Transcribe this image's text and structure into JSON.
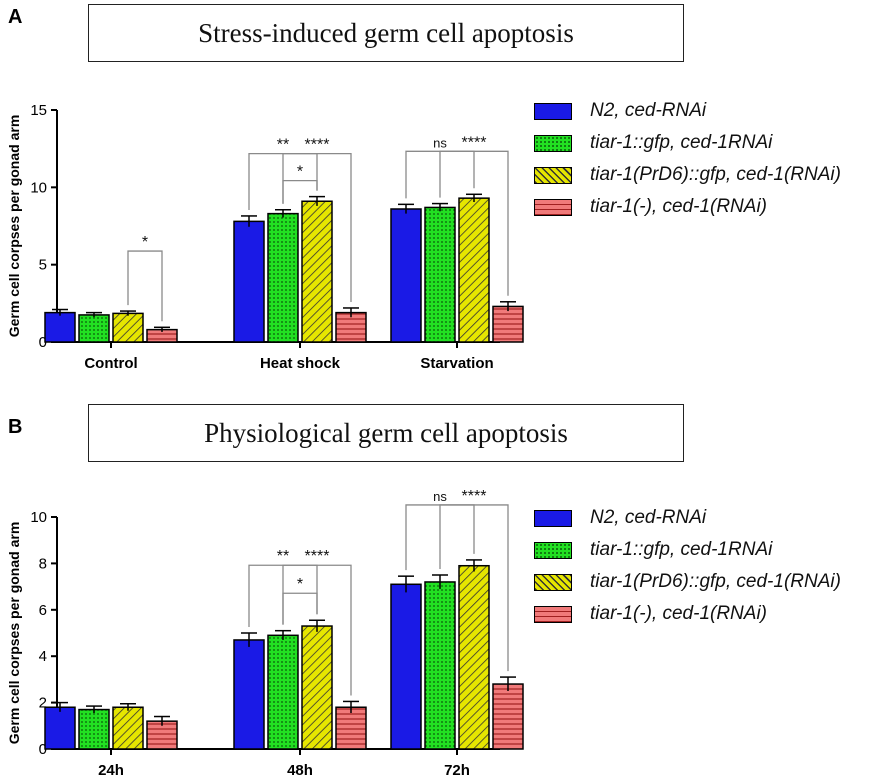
{
  "panels": [
    {
      "letter": "A",
      "title": "Stress-induced germ cell apoptosis",
      "legend": [
        "N2, ced-RNAi",
        "tiar-1::gfp, ced-1RNAi",
        "tiar-1(PrD6)::gfp, ced-1(RNAi)",
        "tiar-1(-), ced-1(RNAi)"
      ]
    },
    {
      "letter": "B",
      "title": "Physiological germ cell apoptosis",
      "legend": [
        "N2, ced-RNAi",
        "tiar-1::gfp, ced-1RNAi",
        "tiar-1(PrD6)::gfp, ced-1(RNAi)",
        "tiar-1(-), ced-1(RNAi)"
      ]
    }
  ],
  "colors": {
    "n2": "#1a1ae6",
    "gfp": "#22e022",
    "prd6": "#e6e600",
    "minus": "#f07a7a"
  },
  "chart_data": [
    {
      "type": "bar",
      "title": "Stress-induced germ cell apoptosis",
      "xlabel": "",
      "ylabel": "Germ cell corpses per gonad arm",
      "ylim": [
        0,
        15
      ],
      "yticks": [
        "0",
        "5",
        "10",
        "15"
      ],
      "categories": [
        "Control",
        "Heat shock",
        "Starvation"
      ],
      "series": [
        {
          "name": "N2, ced-RNAi",
          "values": [
            1.9,
            7.8,
            8.6
          ],
          "errors": [
            0.2,
            0.35,
            0.3
          ]
        },
        {
          "name": "tiar-1::gfp, ced-1RNAi",
          "values": [
            1.75,
            8.3,
            8.7
          ],
          "errors": [
            0.15,
            0.25,
            0.25
          ]
        },
        {
          "name": "tiar-1(PrD6)::gfp, ced-1(RNAi)",
          "values": [
            1.85,
            9.1,
            9.3
          ],
          "errors": [
            0.15,
            0.3,
            0.25
          ]
        },
        {
          "name": "tiar-1(-), ced-1(RNAi)",
          "values": [
            0.8,
            1.9,
            2.3
          ],
          "errors": [
            0.15,
            0.3,
            0.3
          ]
        }
      ],
      "significance": [
        {
          "category": 0,
          "from": 2,
          "to": 3,
          "label": "*"
        },
        {
          "category": 1,
          "from": 0,
          "to": 2,
          "label": "**"
        },
        {
          "category": 1,
          "from": 1,
          "to": 2,
          "label": "*"
        },
        {
          "category": 1,
          "from": 1,
          "to": 3,
          "label": "****"
        },
        {
          "category": 2,
          "from": 0,
          "to": 2,
          "label": "ns"
        },
        {
          "category": 2,
          "from": 1,
          "to": 3,
          "label": "****"
        }
      ]
    },
    {
      "type": "bar",
      "title": "Physiological germ cell apoptosis",
      "xlabel": "",
      "ylabel": "Germ cell corpses per gonad arm",
      "ylim": [
        0,
        10
      ],
      "yticks": [
        "0",
        "2",
        "4",
        "6",
        "8",
        "10"
      ],
      "categories": [
        "24h",
        "48h",
        "72h"
      ],
      "series": [
        {
          "name": "N2, ced-RNAi",
          "values": [
            1.8,
            4.7,
            7.1
          ],
          "errors": [
            0.2,
            0.3,
            0.35
          ]
        },
        {
          "name": "tiar-1::gfp, ced-1RNAi",
          "values": [
            1.7,
            4.9,
            7.2
          ],
          "errors": [
            0.15,
            0.2,
            0.3
          ]
        },
        {
          "name": "tiar-1(PrD6)::gfp, ced-1(RNAi)",
          "values": [
            1.8,
            5.3,
            7.9
          ],
          "errors": [
            0.15,
            0.25,
            0.25
          ]
        },
        {
          "name": "tiar-1(-), ced-1(RNAi)",
          "values": [
            1.2,
            1.8,
            2.8
          ],
          "errors": [
            0.2,
            0.25,
            0.3
          ]
        }
      ],
      "significance": [
        {
          "category": 1,
          "from": 0,
          "to": 2,
          "label": "**"
        },
        {
          "category": 1,
          "from": 1,
          "to": 2,
          "label": "*"
        },
        {
          "category": 1,
          "from": 1,
          "to": 3,
          "label": "****"
        },
        {
          "category": 2,
          "from": 0,
          "to": 2,
          "label": "ns"
        },
        {
          "category": 2,
          "from": 1,
          "to": 3,
          "label": "****"
        }
      ]
    }
  ]
}
